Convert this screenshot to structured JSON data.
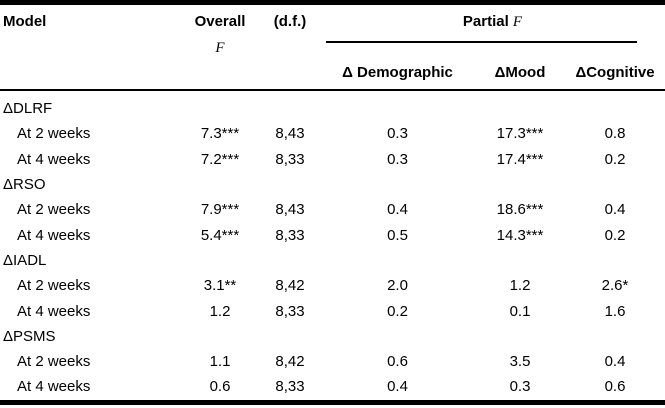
{
  "colors": {
    "text": "#000000",
    "background": "#ffffff",
    "rule": "#000000"
  },
  "table": {
    "header": {
      "model": "Model",
      "overall": "Overall",
      "overall_f": "F",
      "df": "(d.f.)",
      "partial": "Partial",
      "partial_f": "F",
      "sub_demographic": "Δ Demographic",
      "sub_mood": "ΔMood",
      "sub_cognitive": "ΔCognitive"
    },
    "sections": [
      {
        "label": "ΔDLRF",
        "rows": [
          {
            "model": "At 2 weeks",
            "overall_f": "7.3***",
            "df": "8,43",
            "demographic": "0.3",
            "mood": "17.3***",
            "cognitive": "0.8"
          },
          {
            "model": "At 4 weeks",
            "overall_f": "7.2***",
            "df": "8,33",
            "demographic": "0.3",
            "mood": "17.4***",
            "cognitive": "0.2"
          }
        ]
      },
      {
        "label": "ΔRSO",
        "rows": [
          {
            "model": "At 2 weeks",
            "overall_f": "7.9***",
            "df": "8,43",
            "demographic": "0.4",
            "mood": "18.6***",
            "cognitive": "0.4"
          },
          {
            "model": "At 4 weeks",
            "overall_f": "5.4***",
            "df": "8,33",
            "demographic": "0.5",
            "mood": "14.3***",
            "cognitive": "0.2"
          }
        ]
      },
      {
        "label": "ΔIADL",
        "rows": [
          {
            "model": "At 2 weeks",
            "overall_f": "3.1**",
            "df": "8,42",
            "demographic": "2.0",
            "mood": "1.2",
            "cognitive": "2.6*"
          },
          {
            "model": "At 4 weeks",
            "overall_f": "1.2",
            "df": "8,33",
            "demographic": "0.2",
            "mood": "0.1",
            "cognitive": "1.6"
          }
        ]
      },
      {
        "label": "ΔPSMS",
        "rows": [
          {
            "model": "At 2 weeks",
            "overall_f": "1.1",
            "df": "8,42",
            "demographic": "0.6",
            "mood": "3.5",
            "cognitive": "0.4"
          },
          {
            "model": "At 4 weeks",
            "overall_f": "0.6",
            "df": "8,33",
            "demographic": "0.4",
            "mood": "0.3",
            "cognitive": "0.6"
          }
        ]
      }
    ]
  }
}
